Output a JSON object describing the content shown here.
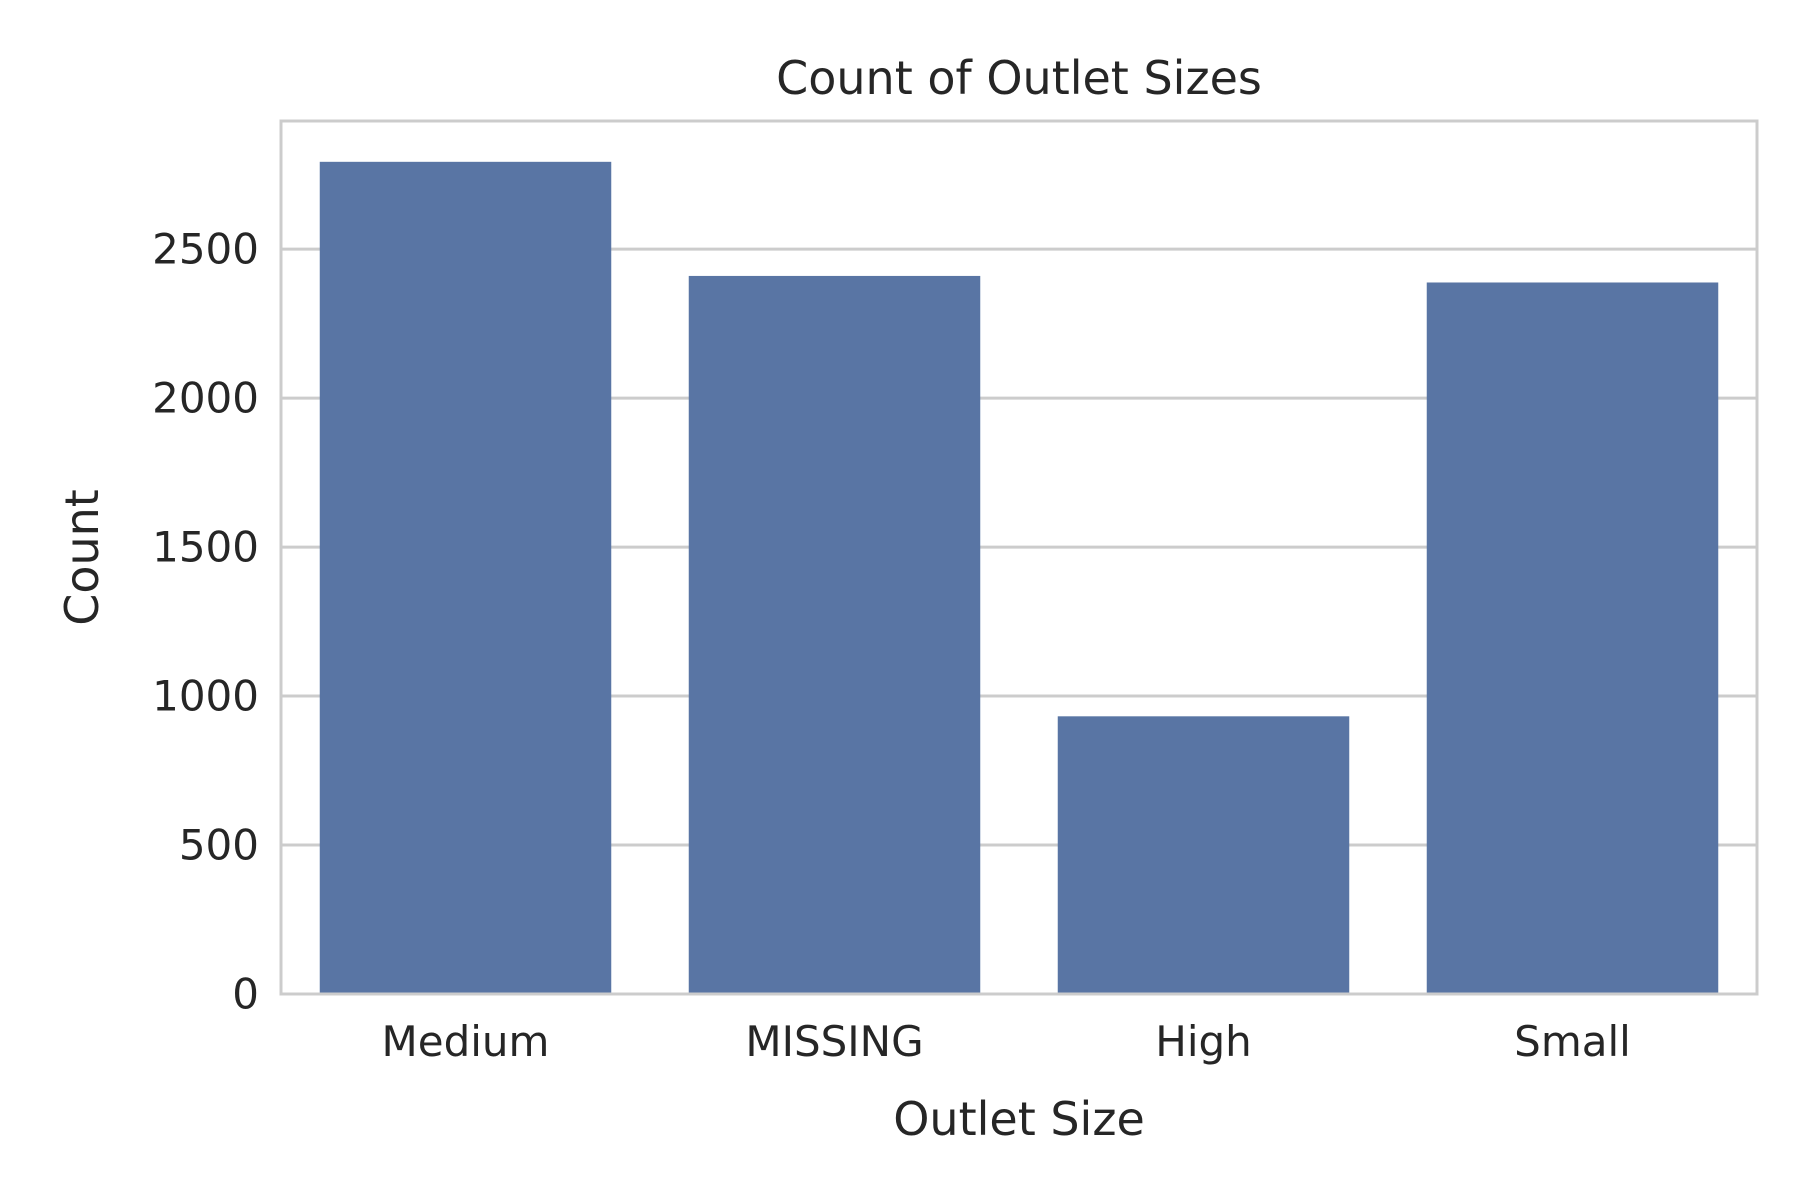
{
  "chart_data": {
    "type": "bar",
    "title": "Count of Outlet Sizes",
    "xlabel": "Outlet Size",
    "ylabel": "Count",
    "categories": [
      "Medium",
      "MISSING",
      "High",
      "Small"
    ],
    "values": [
      2793,
      2410,
      932,
      2388
    ],
    "ylim": [
      0,
      2930
    ],
    "yticks": [
      0,
      500,
      1000,
      1500,
      2000,
      2500
    ],
    "grid": "horizontal",
    "legend": "none",
    "colors": {
      "bar": "#5975a4",
      "grid": "#cccccc",
      "frame": "#cccccc",
      "text": "#262626"
    }
  }
}
